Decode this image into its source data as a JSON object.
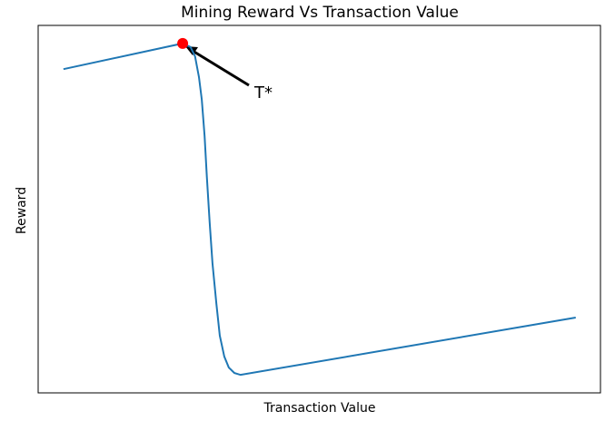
{
  "chart_data": {
    "type": "line",
    "title": "Mining Reward Vs Transaction Value",
    "xlabel": "Transaction Value",
    "ylabel": "Reward",
    "x": [
      4.5,
      25.7,
      27.1,
      27.9,
      28.6,
      29.1,
      29.6,
      30.0,
      30.5,
      31.0,
      31.7,
      32.3,
      33.1,
      33.9,
      34.9,
      36.0,
      95.6
    ],
    "series": [
      {
        "color": "#1f77b4",
        "values": [
          88.1,
          95.1,
          94.1,
          91.6,
          85.9,
          79.8,
          69.9,
          58.8,
          46.4,
          35.3,
          24.2,
          15.6,
          9.9,
          6.9,
          5.4,
          4.9,
          20.5
        ]
      }
    ],
    "point": {
      "x": 25.7,
      "y": 95.1,
      "color": "#ff0000"
    },
    "annotation": {
      "text": "T*"
    },
    "xlim": [
      0,
      100
    ],
    "ylim": [
      0,
      100
    ]
  }
}
